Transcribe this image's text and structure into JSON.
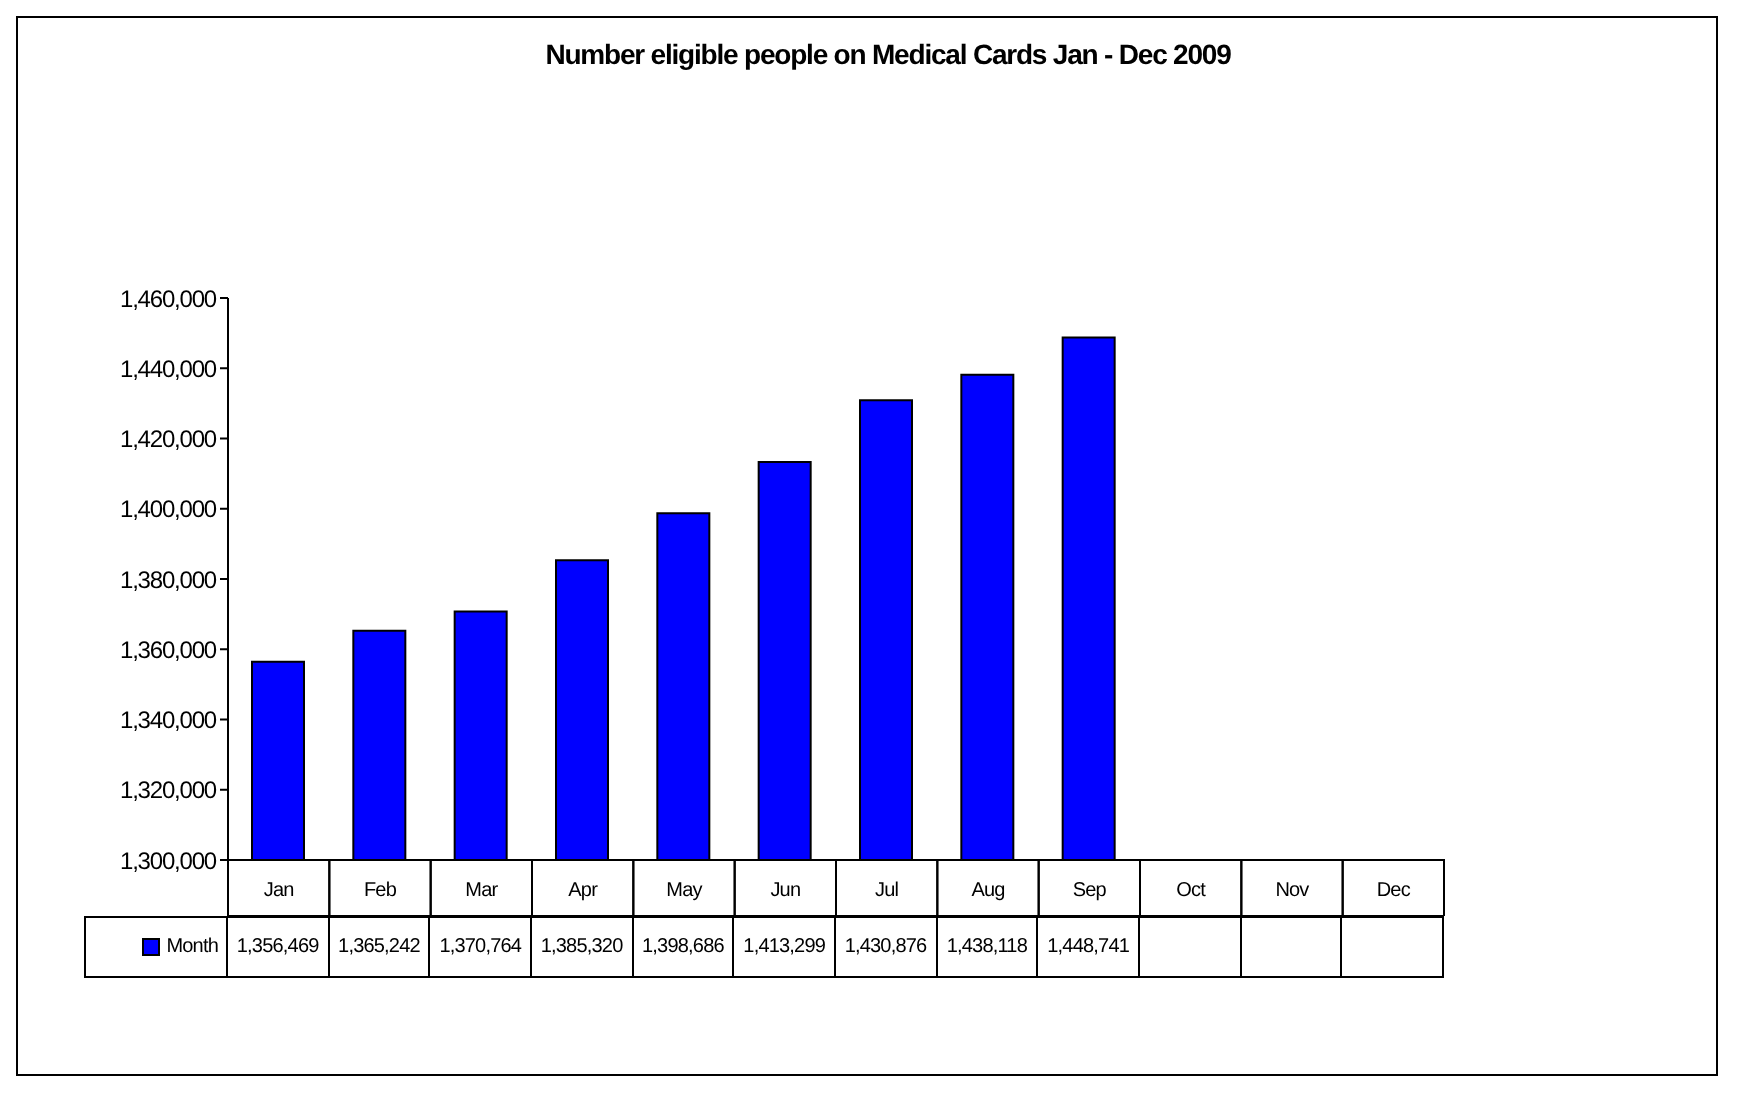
{
  "chart_data": {
    "type": "bar",
    "title": "Number eligible people on Medical Cards Jan - Dec 2009",
    "categories": [
      "Jan",
      "Feb",
      "Mar",
      "Apr",
      "May",
      "Jun",
      "Jul",
      "Aug",
      "Sep",
      "Oct",
      "Nov",
      "Dec"
    ],
    "series": [
      {
        "name": "Month",
        "color": "#0000ff",
        "values": [
          1356469,
          1365242,
          1370764,
          1385320,
          1398686,
          1413299,
          1430876,
          1438118,
          1448741,
          null,
          null,
          null
        ],
        "value_labels": [
          "1,356,469",
          "1,365,242",
          "1,370,764",
          "1,385,320",
          "1,398,686",
          "1,413,299",
          "1,430,876",
          "1,438,118",
          "1,448,741",
          null,
          null,
          null
        ]
      }
    ],
    "ylim": [
      1300000,
      1460000
    ],
    "yticks": [
      {
        "value": 1300000,
        "label": "1,300,000"
      },
      {
        "value": 1320000,
        "label": "1,320,000"
      },
      {
        "value": 1340000,
        "label": "1,340,000"
      },
      {
        "value": 1360000,
        "label": "1,360,000"
      },
      {
        "value": 1380000,
        "label": "1,380,000"
      },
      {
        "value": 1400000,
        "label": "1,400,000"
      },
      {
        "value": 1420000,
        "label": "1,420,000"
      },
      {
        "value": 1440000,
        "label": "1,440,000"
      },
      {
        "value": 1460000,
        "label": "1,460,000"
      }
    ],
    "legend": "bottom left"
  }
}
